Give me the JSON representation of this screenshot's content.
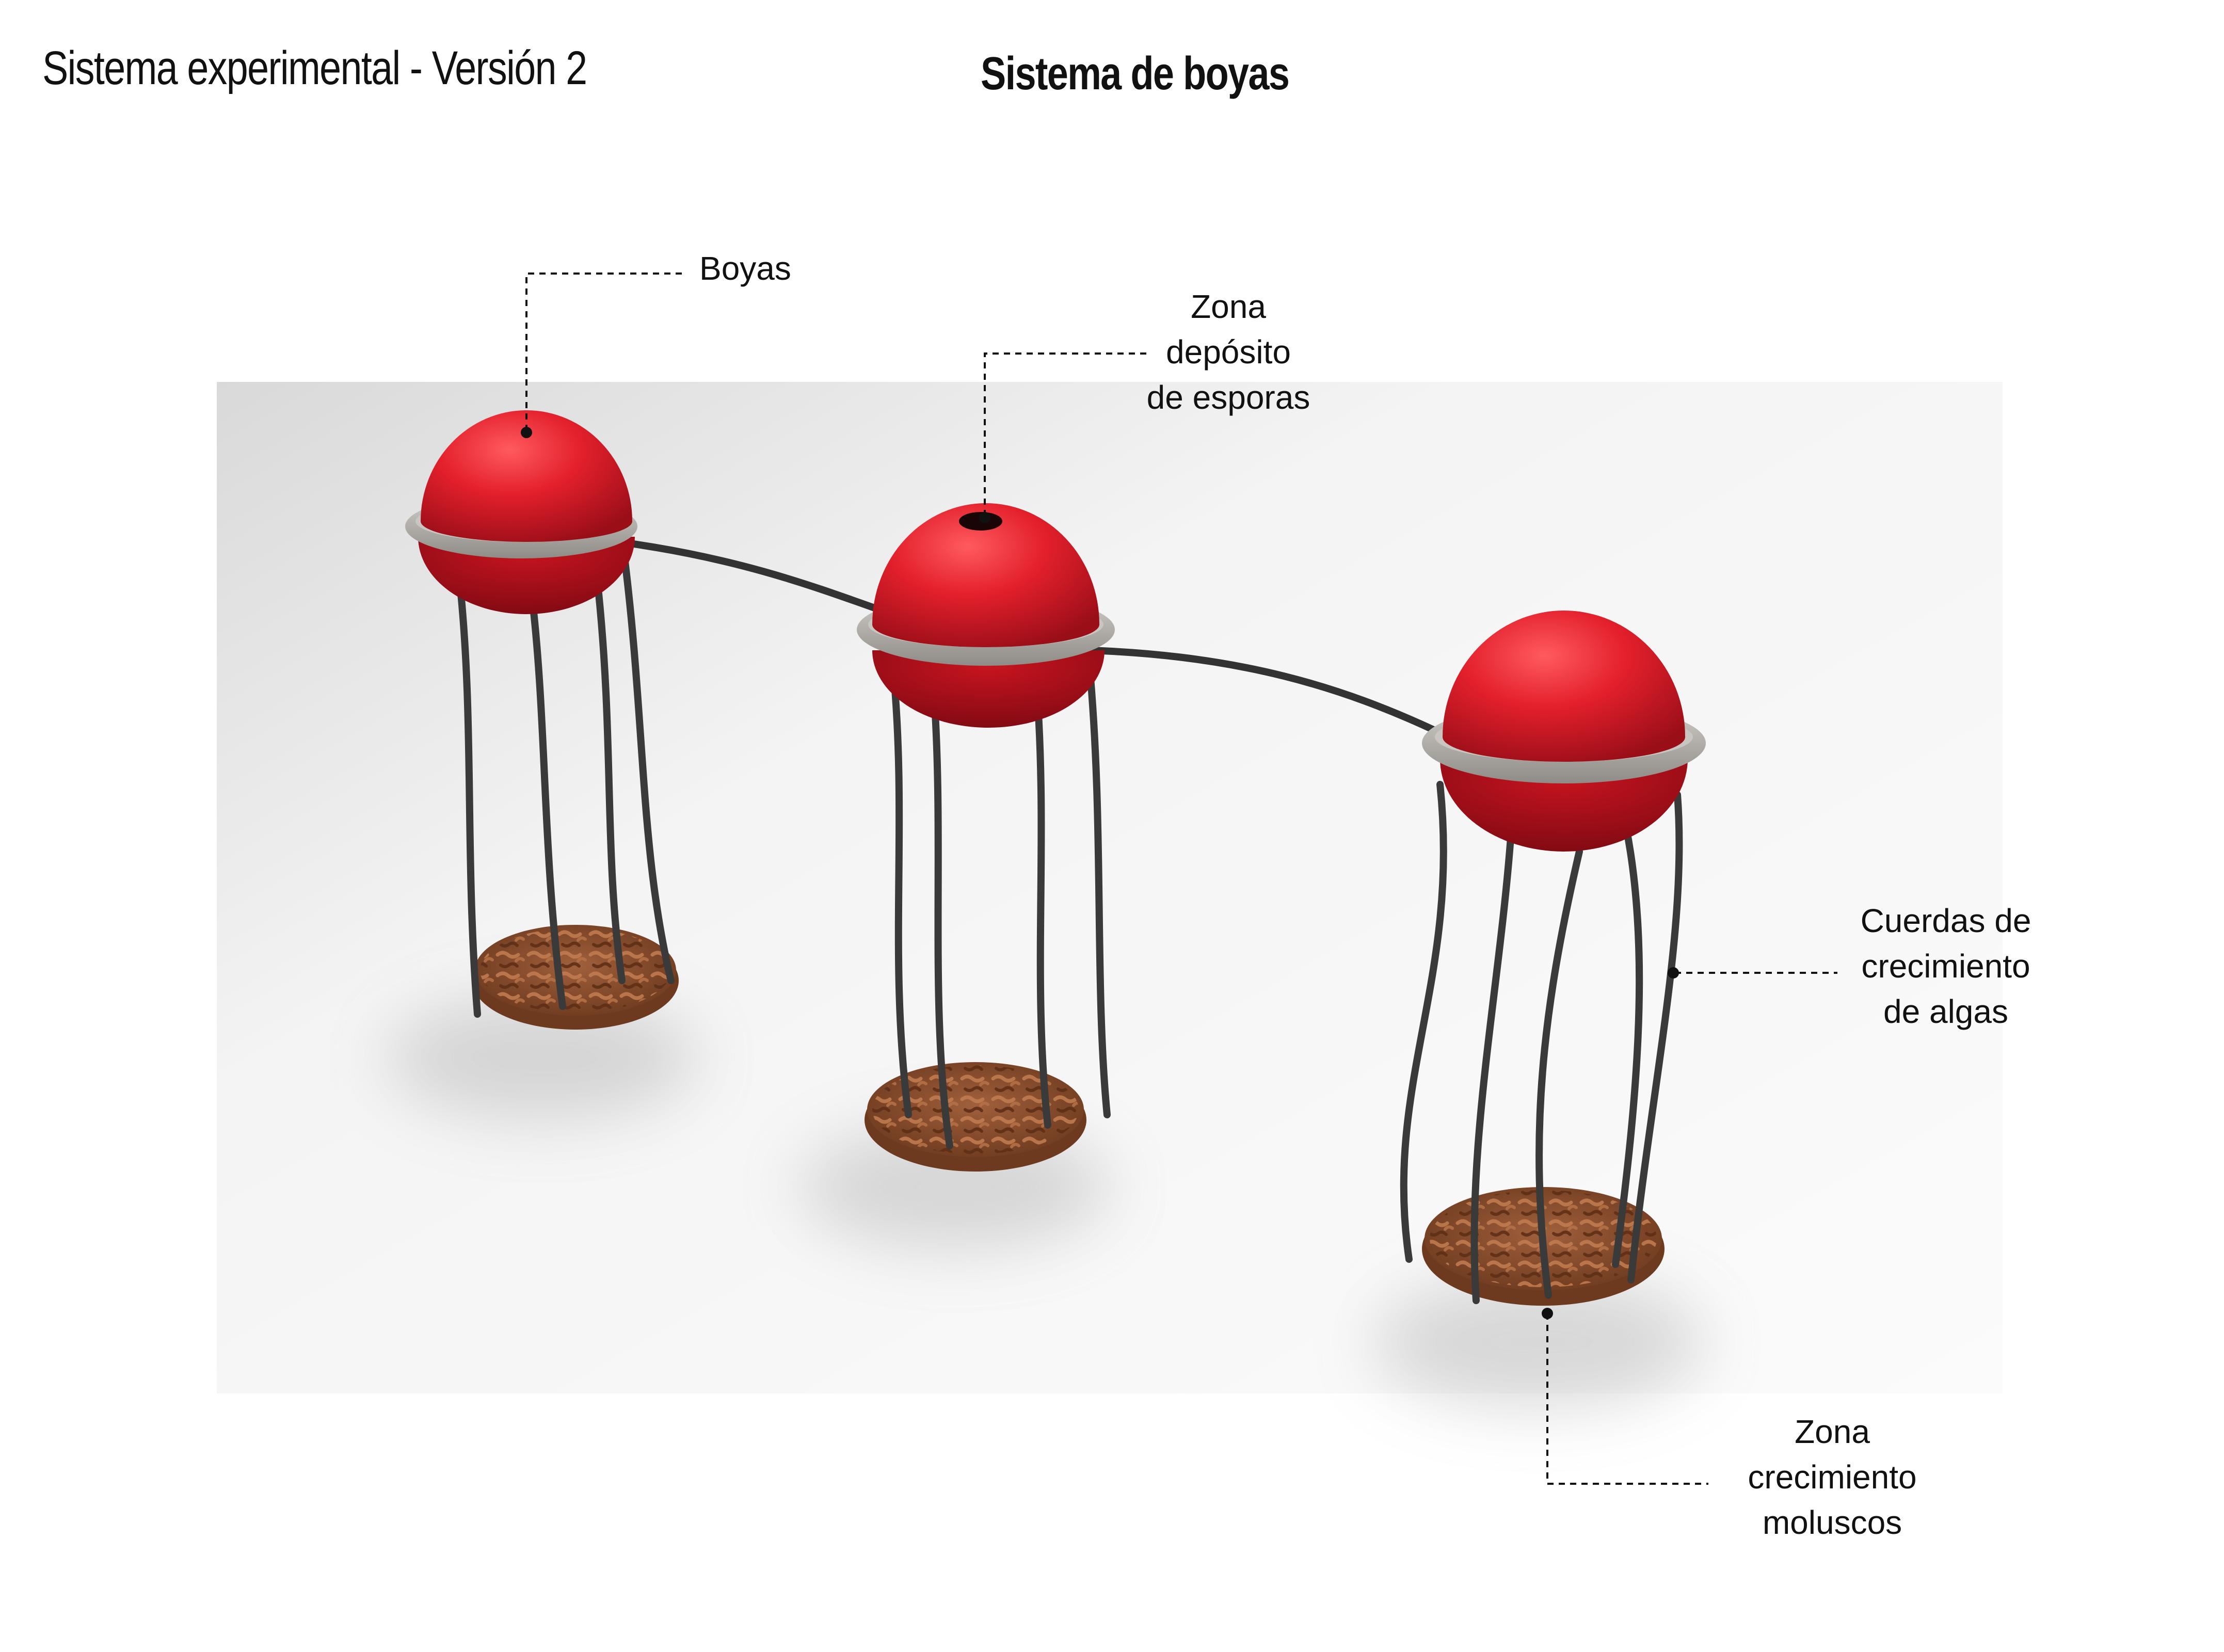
{
  "header": {
    "subtitle": "Sistema experimental - Versión 2",
    "title": "Sistema de boyas"
  },
  "callouts": {
    "buoys": {
      "lines": [
        "Boyas"
      ]
    },
    "spore_zone": {
      "lines": [
        "Zona",
        "depósito",
        "de esporas"
      ]
    },
    "algae_ropes": {
      "lines": [
        "Cuerdas de",
        "crecimiento",
        "de algas"
      ]
    },
    "mollusc_zone": {
      "lines": [
        "Zona",
        "crecimiento",
        "moluscos"
      ]
    }
  },
  "colors": {
    "buoy_red": "#e3202c",
    "ring_grey": "#b9b6b1",
    "rope_dark": "#3a3a3a",
    "basket_brown": "#8a4a2a",
    "backdrop": "#f3f3f3"
  }
}
